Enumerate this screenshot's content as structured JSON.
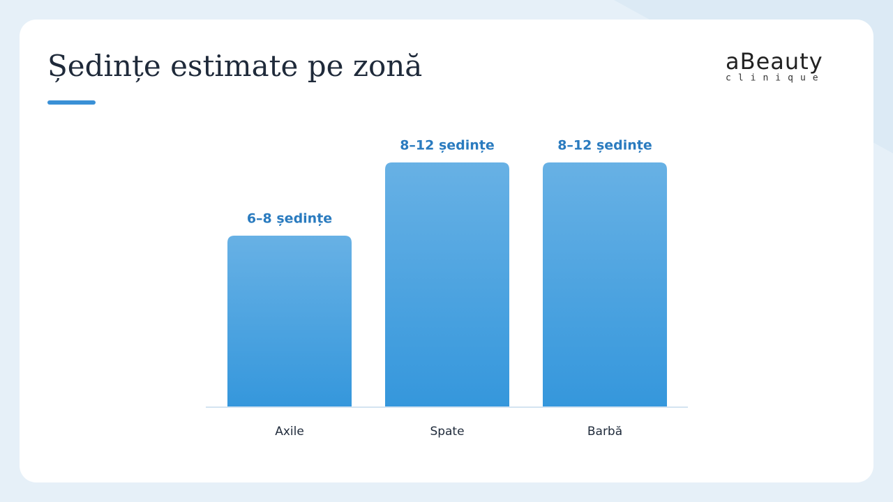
{
  "chart_data": {
    "type": "bar",
    "title": "Ședințe estimate pe zonă",
    "categories": [
      "Axile",
      "Spate",
      "Barbă"
    ],
    "values": [
      7,
      10,
      10
    ],
    "value_labels": [
      "6–8 ședințe",
      "8–12 ședințe",
      "8–12 ședințe"
    ],
    "color": "#3597dc"
  },
  "logo": {
    "name": "aBeauty",
    "tagline": "clinique"
  }
}
